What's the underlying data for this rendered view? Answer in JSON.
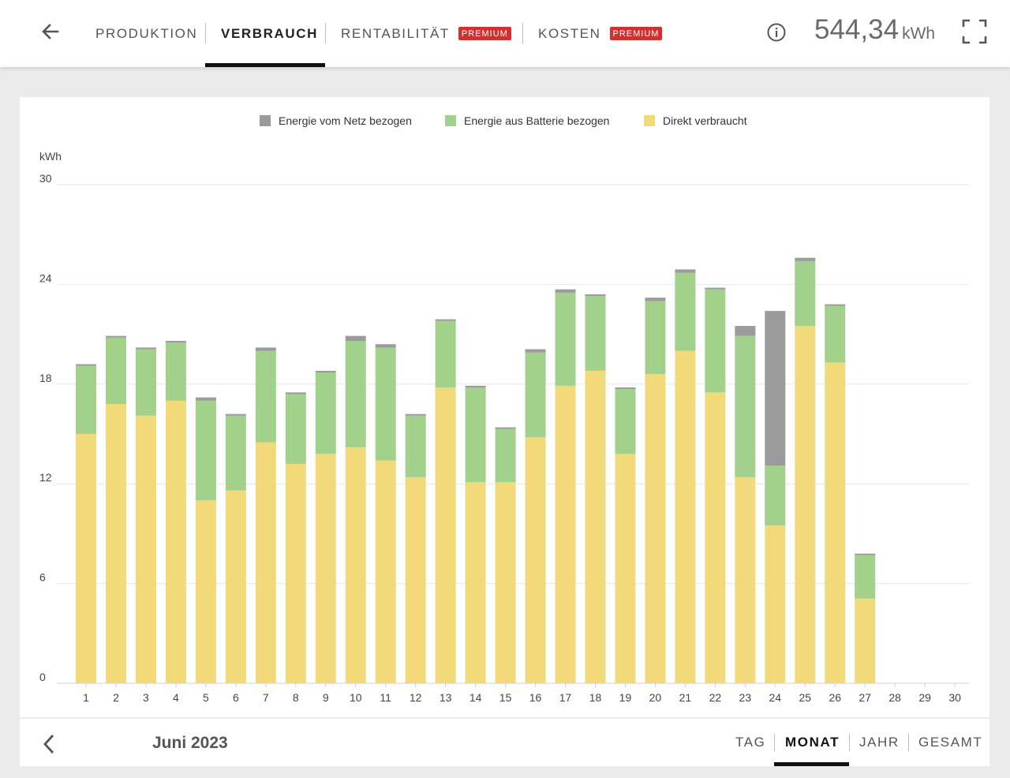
{
  "header": {
    "tabs": [
      {
        "label": "PRODUKTION",
        "active": false
      },
      {
        "label": "VERBRAUCH",
        "active": true
      },
      {
        "label": "RENTABILITÄT",
        "active": false,
        "badge": "PREMIUM"
      },
      {
        "label": "KOSTEN",
        "active": false,
        "badge": "PREMIUM"
      }
    ],
    "total_value": "544,34",
    "total_unit": "kWh",
    "icons": [
      "back-arrow-icon",
      "info-icon",
      "fullscreen-icon"
    ]
  },
  "chart_data": {
    "type": "bar",
    "stacked": true,
    "ylabel": "kWh",
    "ylim": [
      0,
      30
    ],
    "yticks": [
      0,
      6,
      12,
      18,
      24,
      30
    ],
    "grid": true,
    "legend_position": "top-center",
    "categories": [
      "1",
      "2",
      "3",
      "4",
      "5",
      "6",
      "7",
      "8",
      "9",
      "10",
      "11",
      "12",
      "13",
      "14",
      "15",
      "16",
      "17",
      "18",
      "19",
      "20",
      "21",
      "22",
      "23",
      "24",
      "25",
      "26",
      "27",
      "28",
      "29",
      "30"
    ],
    "series": [
      {
        "name": "Direkt verbraucht",
        "color": "#f2da7a",
        "values": [
          15.0,
          16.8,
          16.1,
          17.0,
          11.0,
          11.6,
          14.5,
          13.2,
          13.8,
          14.2,
          13.4,
          12.4,
          17.8,
          12.1,
          12.1,
          14.8,
          17.9,
          18.8,
          13.8,
          18.6,
          20.0,
          17.5,
          12.4,
          9.5,
          21.5,
          19.3,
          5.1,
          0,
          0,
          0
        ]
      },
      {
        "name": "Energie aus Batterie bezogen",
        "color": "#a1d18b",
        "values": [
          4.1,
          4.0,
          4.0,
          3.5,
          6.0,
          4.5,
          5.5,
          4.2,
          4.9,
          6.4,
          6.8,
          3.7,
          4.0,
          5.7,
          3.2,
          5.1,
          5.6,
          4.5,
          3.9,
          4.4,
          4.7,
          6.2,
          8.5,
          3.6,
          3.9,
          3.4,
          2.6,
          0,
          0,
          0
        ]
      },
      {
        "name": "Energie vom Netz bezogen",
        "color": "#9b9b9b",
        "values": [
          0.1,
          0.1,
          0.1,
          0.1,
          0.2,
          0.1,
          0.2,
          0.1,
          0.1,
          0.3,
          0.2,
          0.1,
          0.1,
          0.1,
          0.1,
          0.2,
          0.2,
          0.1,
          0.1,
          0.2,
          0.2,
          0.1,
          0.6,
          9.3,
          0.2,
          0.1,
          0.1,
          0,
          0,
          0
        ]
      }
    ]
  },
  "footer": {
    "period": "Juni 2023",
    "ranges": [
      {
        "label": "TAG",
        "active": false
      },
      {
        "label": "MONAT",
        "active": true
      },
      {
        "label": "JAHR",
        "active": false
      },
      {
        "label": "GESAMT",
        "active": false
      }
    ],
    "icons": [
      "chevron-left-icon"
    ]
  }
}
